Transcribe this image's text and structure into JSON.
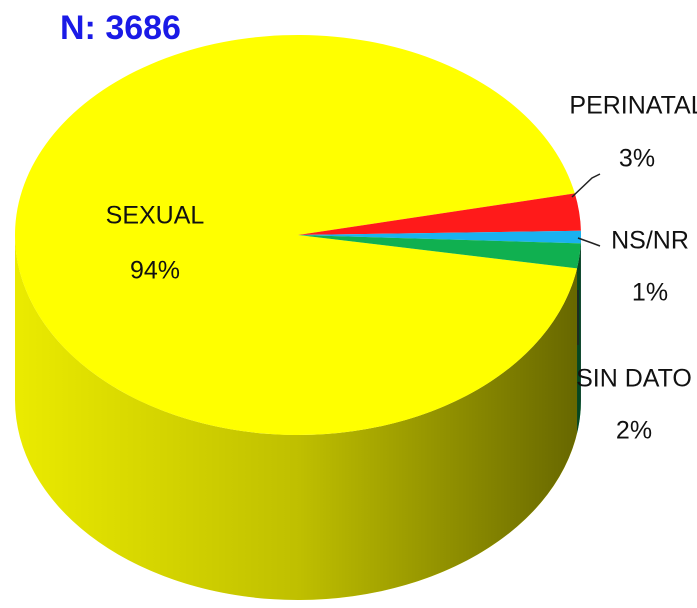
{
  "chart_data": {
    "type": "pie",
    "title": "N: 3686",
    "categories": [
      "SEXUAL",
      "PERINATAL",
      "NS/NR",
      "SIN DATO"
    ],
    "values": [
      94,
      3,
      1,
      2
    ],
    "value_labels": [
      "94%",
      "3%",
      "1%",
      "2%"
    ],
    "colors": [
      "#ffff00",
      "#ff1a1a",
      "#1ab2f0",
      "#10b050"
    ]
  }
}
